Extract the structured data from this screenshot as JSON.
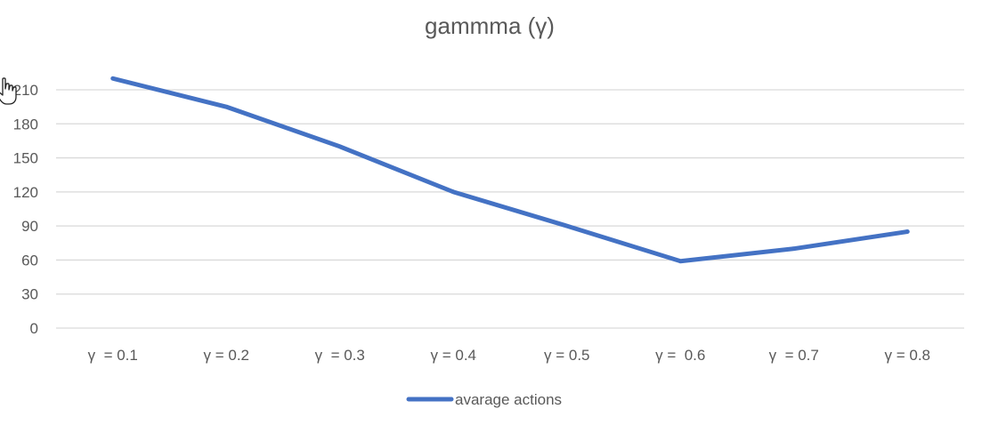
{
  "chart_data": {
    "type": "line",
    "title": "gammma (γ)",
    "categories": [
      "γ  = 0.1",
      "γ = 0.2",
      "γ  = 0.3",
      "γ = 0.4",
      "γ = 0.5",
      "γ =  0.6",
      "γ  = 0.7",
      "γ = 0.8"
    ],
    "yticks": [
      "0",
      "30",
      "60",
      "90",
      "120",
      "150",
      "180",
      "210"
    ],
    "ylim": [
      0,
      210
    ],
    "grid": true,
    "legend_position": "bottom",
    "series": [
      {
        "name": "avarage actions",
        "color": "#4472c4",
        "values": [
          220,
          195,
          160,
          120,
          90,
          59,
          70,
          85
        ]
      }
    ]
  },
  "cursor": {
    "icon": "hand-pointer-icon"
  }
}
